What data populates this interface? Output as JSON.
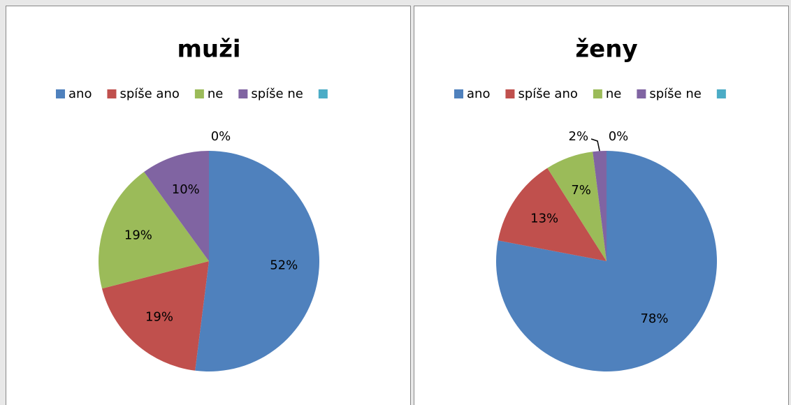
{
  "chart_data": [
    {
      "type": "pie",
      "title": "muži",
      "categories": [
        "ano",
        "spíše ano",
        "ne",
        "spíše ne",
        null
      ],
      "values": [
        52,
        19,
        19,
        10,
        0
      ],
      "value_labels": [
        "52%",
        "19%",
        "19%",
        "10%",
        "0%"
      ],
      "colors": [
        "#4f81bd",
        "#c0504d",
        "#9bbb59",
        "#8064a2",
        "#4bacc6"
      ],
      "legend": "top"
    },
    {
      "type": "pie",
      "title": "ženy",
      "categories": [
        "ano",
        "spíše ano",
        "ne",
        "spíše ne",
        null
      ],
      "values": [
        78,
        13,
        7,
        2,
        0
      ],
      "value_labels": [
        "78%",
        "13%",
        "7%",
        "2%",
        "0%"
      ],
      "colors": [
        "#4f81bd",
        "#c0504d",
        "#9bbb59",
        "#8064a2",
        "#4bacc6"
      ],
      "legend": "top"
    }
  ]
}
